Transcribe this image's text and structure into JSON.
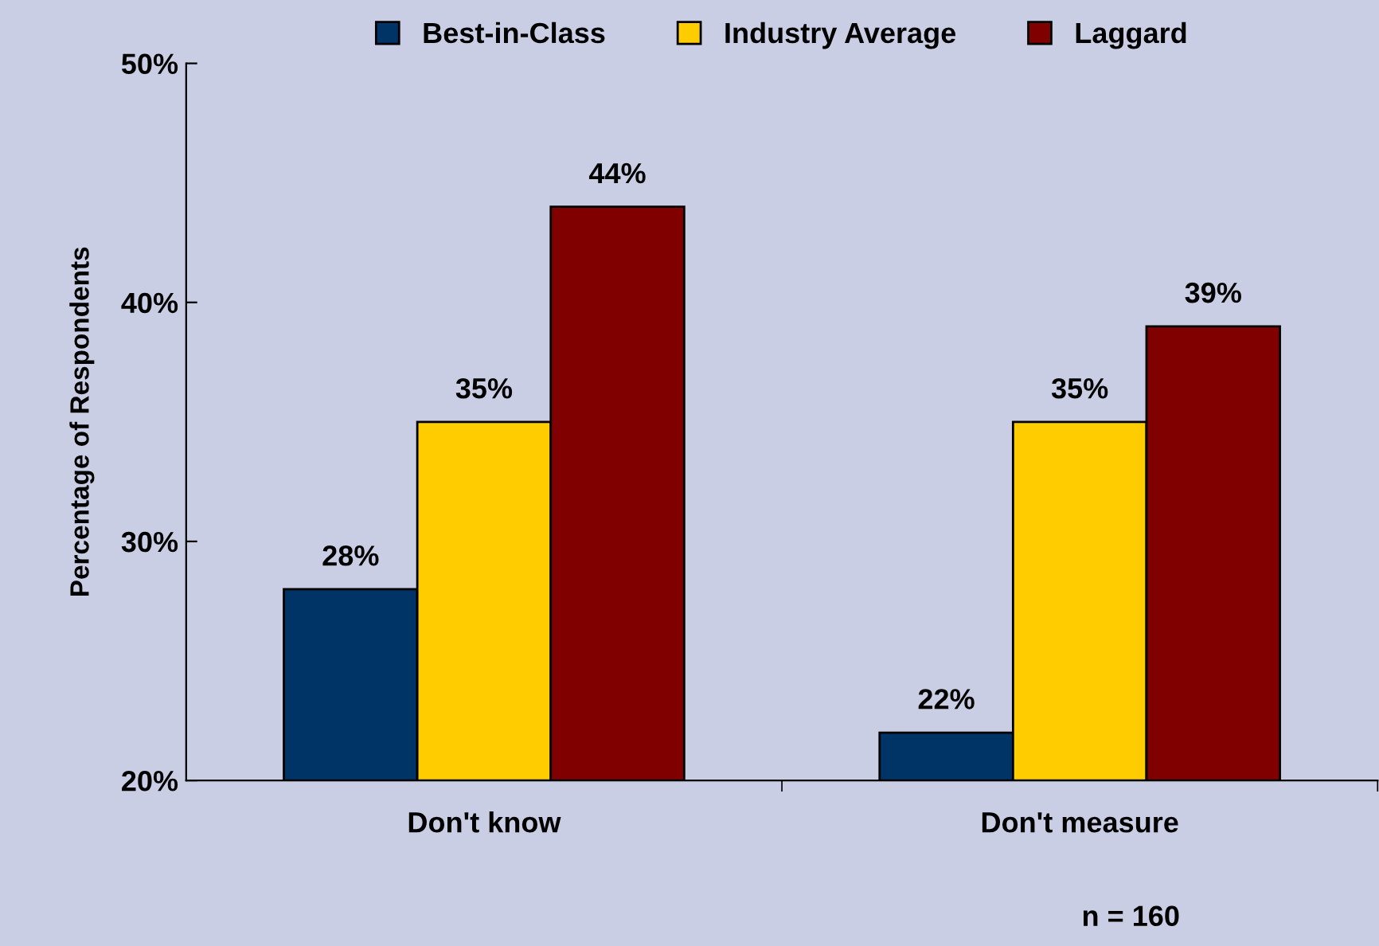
{
  "chart_data": {
    "type": "bar",
    "categories": [
      "Don't know",
      "Don't measure"
    ],
    "series": [
      {
        "name": "Best-in-Class",
        "color": "#003366",
        "values": [
          28,
          22
        ],
        "value_labels": [
          "28%",
          "22%"
        ]
      },
      {
        "name": "Industry Average",
        "color": "#ffcc00",
        "values": [
          35,
          35
        ],
        "value_labels": [
          "35%",
          "35%"
        ]
      },
      {
        "name": "Laggard",
        "color": "#800000",
        "values": [
          44,
          39
        ],
        "value_labels": [
          "44%",
          "39%"
        ]
      }
    ],
    "ylabel": "Percentage of Respondents",
    "ylim": [
      20,
      50
    ],
    "yticks": [
      {
        "value": 20,
        "label": "20%"
      },
      {
        "value": 30,
        "label": "30%"
      },
      {
        "value": 40,
        "label": "40%"
      },
      {
        "value": 50,
        "label": "50%"
      }
    ],
    "grid": false,
    "legend": "top",
    "annotations": [
      "n = 160"
    ]
  }
}
